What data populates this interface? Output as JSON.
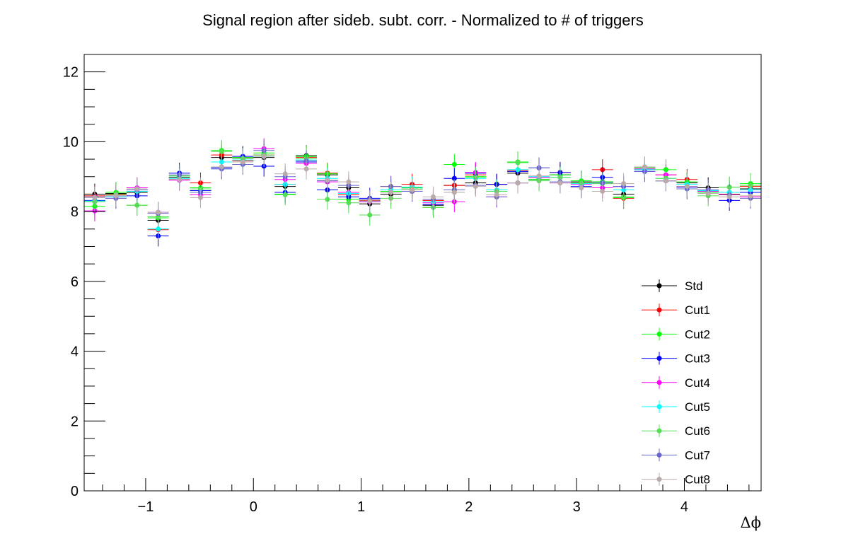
{
  "chart_data": {
    "type": "scatter",
    "title": "Signal region after sideb. subt. corr. - Normalized to # of triggers",
    "xlabel": "Δϕ",
    "ylabel": "",
    "xlim": [
      -1.5708,
      4.7124
    ],
    "ylim": [
      0,
      12.5
    ],
    "bin_width": 0.19635,
    "x_ticks": [
      -1,
      0,
      1,
      2,
      3,
      4
    ],
    "x_tick_labels": [
      "−1",
      "0",
      "1",
      "2",
      "3",
      "4"
    ],
    "y_ticks": [
      0,
      2,
      4,
      6,
      8,
      10,
      12
    ],
    "y_tick_labels": [
      "0",
      "2",
      "4",
      "6",
      "8",
      "10",
      "12"
    ],
    "grid": false,
    "legend_position": "bottom-right",
    "x": [
      -1.473,
      -1.276,
      -1.08,
      -0.884,
      -0.687,
      -0.491,
      -0.295,
      -0.098,
      0.098,
      0.295,
      0.491,
      0.687,
      0.884,
      1.08,
      1.276,
      1.473,
      1.669,
      1.865,
      2.062,
      2.258,
      2.454,
      2.651,
      2.847,
      3.043,
      3.24,
      3.436,
      3.632,
      3.829,
      4.025,
      4.221,
      4.418,
      4.614
    ],
    "series": [
      {
        "name": "Std",
        "color": "#000000",
        "error": 0.3,
        "values": [
          8.5,
          8.52,
          8.55,
          7.75,
          8.98,
          8.6,
          9.55,
          9.55,
          9.55,
          8.72,
          9.6,
          9.05,
          8.68,
          8.22,
          8.5,
          8.65,
          8.18,
          8.75,
          8.82,
          8.78,
          9.1,
          8.92,
          9.05,
          8.85,
          8.85,
          8.5,
          9.2,
          8.88,
          8.82,
          8.68,
          8.55,
          8.65
        ]
      },
      {
        "name": "Cut1",
        "color": "#ff0000",
        "error": 0.3,
        "values": [
          8.45,
          8.48,
          8.62,
          7.48,
          8.92,
          8.82,
          9.62,
          9.45,
          9.62,
          8.78,
          9.55,
          9.1,
          8.48,
          8.32,
          8.72,
          8.78,
          8.32,
          8.75,
          9.05,
          8.78,
          9.18,
          8.98,
          9.12,
          8.82,
          9.2,
          8.38,
          9.25,
          9.05,
          8.92,
          8.62,
          8.5,
          8.72
        ]
      },
      {
        "name": "Cut2",
        "color": "#00ff00",
        "error": 0.3,
        "values": [
          8.15,
          8.55,
          8.18,
          7.82,
          9.02,
          8.68,
          9.75,
          9.55,
          9.68,
          8.5,
          9.58,
          9.08,
          8.35,
          8.3,
          8.58,
          8.68,
          8.12,
          9.35,
          9.0,
          8.58,
          9.42,
          8.92,
          9.05,
          8.88,
          8.85,
          8.4,
          9.25,
          9.2,
          8.85,
          8.55,
          8.7,
          8.8
        ]
      },
      {
        "name": "Cut3",
        "color": "#0000ff",
        "error": 0.3,
        "values": [
          8.32,
          8.45,
          8.45,
          7.3,
          9.1,
          8.6,
          9.25,
          9.58,
          9.3,
          8.55,
          9.42,
          8.62,
          8.42,
          8.38,
          8.62,
          8.58,
          8.2,
          8.95,
          9.1,
          8.78,
          9.15,
          9.25,
          9.12,
          8.72,
          8.98,
          8.72,
          9.15,
          8.88,
          8.7,
          8.6,
          8.32,
          8.55
        ]
      },
      {
        "name": "Cut4",
        "color": "#ff00ff",
        "error": 0.3,
        "values": [
          8.02,
          8.38,
          8.68,
          7.98,
          8.9,
          8.48,
          9.28,
          9.52,
          9.8,
          8.92,
          9.38,
          8.85,
          8.55,
          8.28,
          8.62,
          8.7,
          8.25,
          8.28,
          9.12,
          8.42,
          8.82,
          8.98,
          8.82,
          8.78,
          8.68,
          8.72,
          9.22,
          9.05,
          8.72,
          8.58,
          8.48,
          8.42
        ]
      },
      {
        "name": "Cut5",
        "color": "#00ffff",
        "error": 0.3,
        "values": [
          8.3,
          8.42,
          8.58,
          7.5,
          8.95,
          8.55,
          9.42,
          9.48,
          9.58,
          8.78,
          9.48,
          8.95,
          8.52,
          8.3,
          8.62,
          8.7,
          8.28,
          8.62,
          8.95,
          8.62,
          9.2,
          9.0,
          8.98,
          8.8,
          8.82,
          8.62,
          9.2,
          8.95,
          8.78,
          8.6,
          8.55,
          8.62
        ]
      },
      {
        "name": "Cut6",
        "color": "#55dd55",
        "error": 0.3,
        "values": [
          8.28,
          8.5,
          8.18,
          7.85,
          9.02,
          8.65,
          9.72,
          9.52,
          9.62,
          8.48,
          9.52,
          8.35,
          8.25,
          7.9,
          8.38,
          8.65,
          8.12,
          8.62,
          8.98,
          8.58,
          9.4,
          8.88,
          8.98,
          8.82,
          8.8,
          8.42,
          9.28,
          8.95,
          8.65,
          8.45,
          8.7,
          8.75
        ]
      },
      {
        "name": "Cut7",
        "color": "#6666cc",
        "error": 0.3,
        "values": [
          8.42,
          8.38,
          8.62,
          7.95,
          9.05,
          8.55,
          9.22,
          9.35,
          9.75,
          9.0,
          9.45,
          8.88,
          8.75,
          8.35,
          8.72,
          8.58,
          8.35,
          8.62,
          8.75,
          8.42,
          8.82,
          9.25,
          8.85,
          8.68,
          8.82,
          8.72,
          9.15,
          8.88,
          8.65,
          8.62,
          8.48,
          8.38
        ]
      },
      {
        "name": "Cut8",
        "color": "#bbaaaa",
        "error": 0.3,
        "values": [
          8.4,
          8.45,
          8.65,
          7.98,
          8.92,
          8.4,
          9.28,
          9.42,
          9.58,
          9.08,
          9.22,
          8.9,
          8.85,
          8.3,
          8.55,
          8.62,
          8.42,
          8.55,
          8.72,
          8.48,
          8.82,
          9.02,
          8.82,
          8.68,
          8.58,
          8.8,
          9.28,
          8.88,
          8.72,
          8.52,
          8.42,
          8.45
        ]
      }
    ]
  }
}
